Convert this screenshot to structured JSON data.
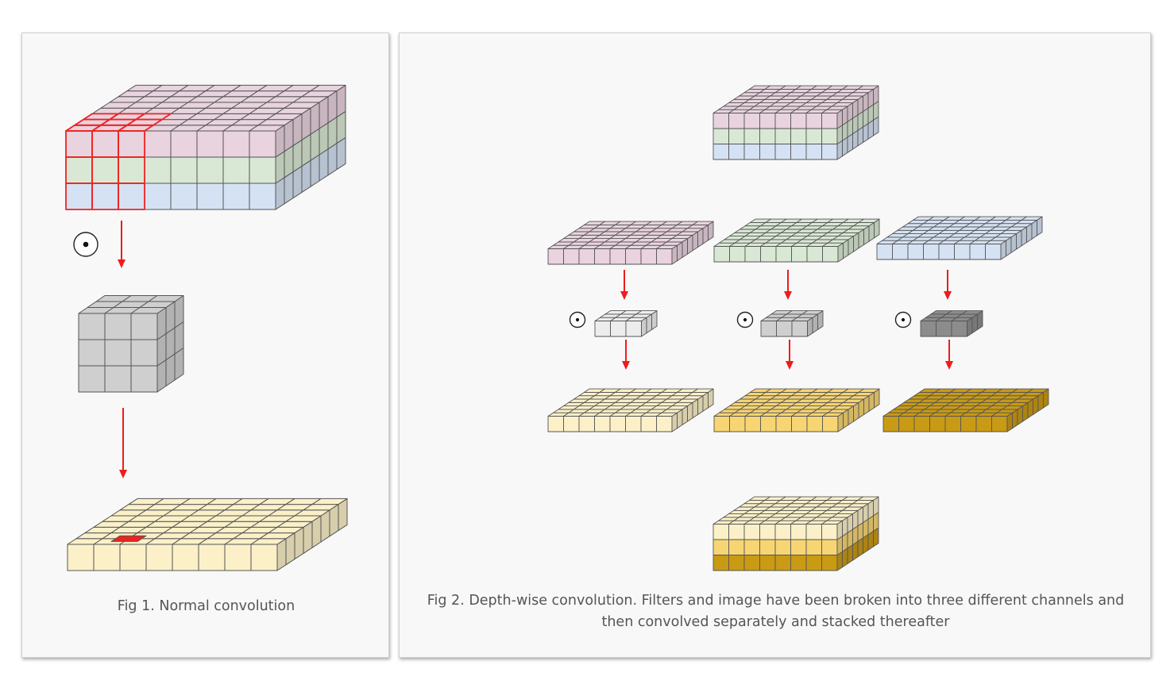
{
  "fig1": {
    "caption": "Fig 1. Normal convolution"
  },
  "fig2": {
    "caption": "Fig 2. Depth-wise convolution. Filters and image have been broken into three different channels and then convolved separately and stacked thereafter"
  },
  "colors": {
    "pink": "#e8d3de",
    "green": "#d9e8d4",
    "blue": "#d5e2f3",
    "gray_light": "#ededed",
    "gray_mid": "#cfcfcf",
    "gray_dark": "#8c8c8c",
    "cream": "#fbf0c8",
    "gold": "#f7d572",
    "dark_gold": "#c99a14",
    "highlight_red": "#ee2222",
    "arrow_red": "#ee1c1c",
    "edge": "#555555"
  },
  "icons": [
    "odot-operator-icon",
    "down-arrow-icon"
  ]
}
